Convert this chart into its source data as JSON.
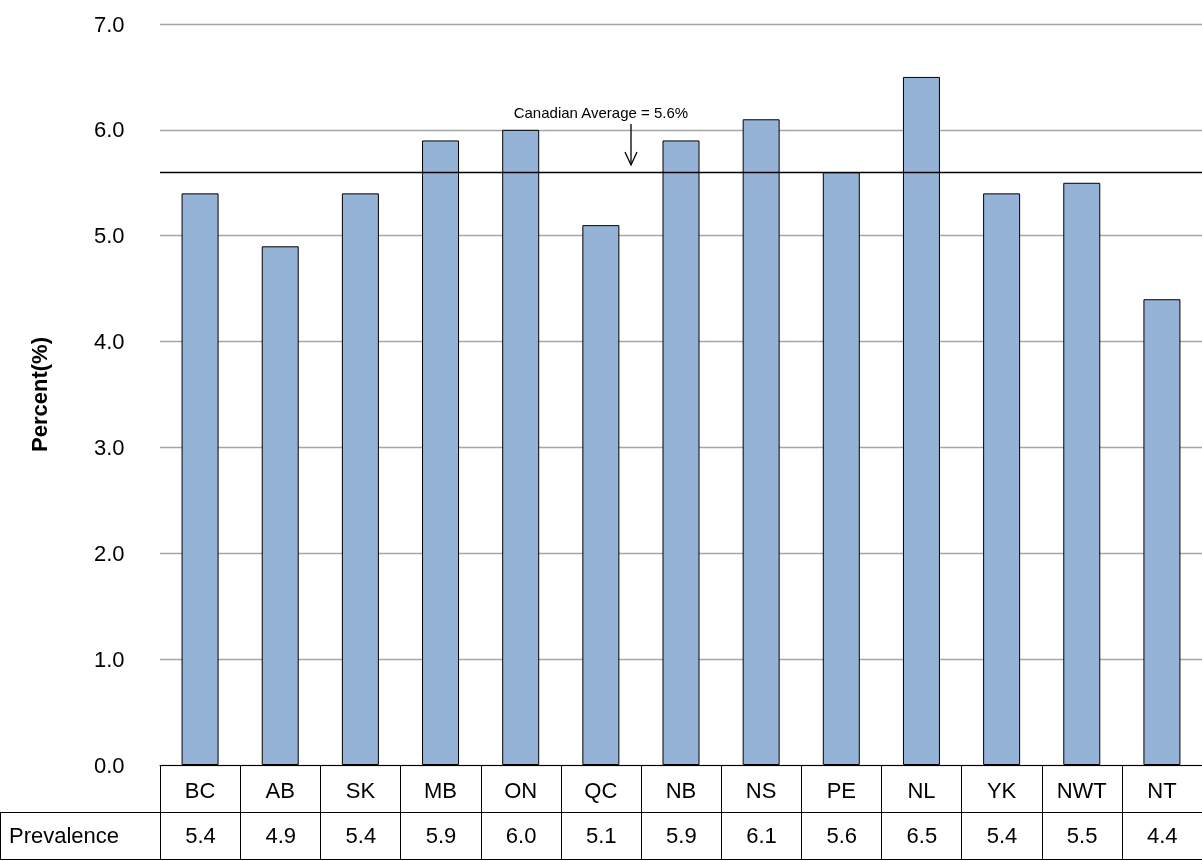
{
  "chart_data": {
    "type": "bar",
    "ylabel": "Percent(%)",
    "categories": [
      "BC",
      "AB",
      "SK",
      "MB",
      "ON",
      "QC",
      "NB",
      "NS",
      "PE",
      "NL",
      "YK",
      "NWT",
      "NT"
    ],
    "series": [
      {
        "name": "Prevalence",
        "color": "#95b3d7",
        "values": [
          5.4,
          4.9,
          5.4,
          5.9,
          6.0,
          5.1,
          5.9,
          6.1,
          5.6,
          6.5,
          5.4,
          5.5,
          4.4
        ],
        "value_labels": [
          "5.4",
          "4.9",
          "5.4",
          "5.9",
          "6.0",
          "5.1",
          "5.9",
          "6.1",
          "5.6",
          "6.5",
          "5.4",
          "5.5",
          "4.4"
        ]
      }
    ],
    "ylim": [
      0,
      7
    ],
    "yticks": [
      {
        "value": 0,
        "label": "0.0"
      },
      {
        "value": 1,
        "label": "1.0"
      },
      {
        "value": 2,
        "label": "2.0"
      },
      {
        "value": 3,
        "label": "3.0"
      },
      {
        "value": 4,
        "label": "4.0"
      },
      {
        "value": 5,
        "label": "5.0"
      },
      {
        "value": 6,
        "label": "6.0"
      },
      {
        "value": 7,
        "label": "7.0"
      }
    ],
    "ref_lines": [
      {
        "axis": "y",
        "value": 5.6,
        "label": "Canadian Average = 5.6%",
        "color": "#000000"
      }
    ],
    "grid": "y",
    "legend": "bottom left"
  }
}
